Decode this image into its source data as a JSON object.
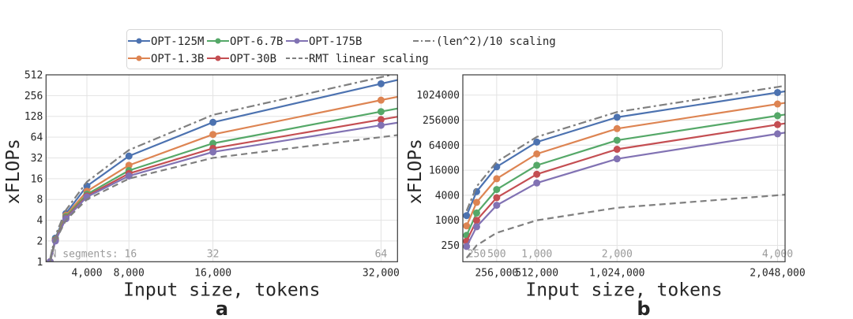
{
  "legend": {
    "placement": "top-center",
    "entries": [
      {
        "label": "OPT-125M",
        "color": "#4c72b0",
        "style": "solid-marker"
      },
      {
        "label": "OPT-1.3B",
        "color": "#dd8452",
        "style": "solid-marker"
      },
      {
        "label": "OPT-6.7B",
        "color": "#55a868",
        "style": "solid-marker"
      },
      {
        "label": "OPT-30B",
        "color": "#c44e52",
        "style": "solid-marker"
      },
      {
        "label": "OPT-175B",
        "color": "#8172b3",
        "style": "solid-marker"
      },
      {
        "label": "RMT linear scaling",
        "color": "#7f7f7f",
        "style": "dashed"
      },
      {
        "label": "(len^2)/10 scaling",
        "color": "#7f7f7f",
        "style": "dashdot"
      }
    ]
  },
  "chart_data": [
    {
      "type": "line",
      "panel_label": "a",
      "xlabel": "Input size, tokens",
      "ylabel": "xFLOPs",
      "x_scale": "linear",
      "y_scale": "log2",
      "xlim": [
        110,
        33570
      ],
      "ylim": [
        1,
        512
      ],
      "grid": true,
      "x_ticks": [
        {
          "value": 4000,
          "label": "4,000"
        },
        {
          "value": 8000,
          "label": "8,000"
        },
        {
          "value": 16000,
          "label": "16,000"
        },
        {
          "value": 32000,
          "label": "32,000"
        }
      ],
      "y_ticks": [
        {
          "value": 1,
          "label": "1"
        },
        {
          "value": 2,
          "label": "2"
        },
        {
          "value": 4,
          "label": "4"
        },
        {
          "value": 8,
          "label": "8"
        },
        {
          "value": 16,
          "label": "16"
        },
        {
          "value": 32,
          "label": "32"
        },
        {
          "value": 64,
          "label": "64"
        },
        {
          "value": 128,
          "label": "128"
        },
        {
          "value": 256,
          "label": "256"
        },
        {
          "value": 512,
          "label": "512"
        }
      ],
      "secondary_ticks": [
        {
          "value": 8000,
          "label": "N segments: 16"
        },
        {
          "value": 16000,
          "label": "32"
        },
        {
          "value": 32000,
          "label": "64"
        }
      ],
      "x": [
        500,
        1000,
        2000,
        4000,
        8000,
        16000,
        32000
      ],
      "series": [
        {
          "name": "OPT-125M",
          "values": [
            1,
            2.2,
            5,
            12.5,
            34,
            105,
            380
          ]
        },
        {
          "name": "OPT-1.3B",
          "values": [
            1,
            2.1,
            4.7,
            10.5,
            25,
            70,
            220
          ]
        },
        {
          "name": "OPT-6.7B",
          "values": [
            1,
            2.1,
            4.5,
            9.5,
            21,
            52,
            150
          ]
        },
        {
          "name": "OPT-30B",
          "values": [
            1,
            2.05,
            4.3,
            9,
            19,
            44,
            115
          ]
        },
        {
          "name": "OPT-175B",
          "values": [
            1,
            2,
            4.2,
            8.7,
            17.5,
            39,
            95
          ]
        },
        {
          "name": "RMT linear scaling",
          "values": [
            1,
            2,
            4,
            8,
            16,
            32,
            64
          ]
        },
        {
          "name": "(len^2)/10 scaling",
          "values": [
            1.1,
            2.4,
            5.6,
            14.4,
            41.6,
            134.4,
            473.6
          ]
        }
      ]
    },
    {
      "type": "line",
      "panel_label": "b",
      "xlabel": "Input size, tokens",
      "ylabel": "xFLOPs",
      "x_scale": "linear",
      "y_scale": "log2",
      "xlim": [
        40000,
        2096000
      ],
      "ylim": [
        101,
        3140000
      ],
      "grid": true,
      "x_ticks": [
        {
          "value": 256000,
          "label": "256,000"
        },
        {
          "value": 512000,
          "label": "512,000"
        },
        {
          "value": 1024000,
          "label": "1,024,000"
        },
        {
          "value": 2048000,
          "label": "2,048,000"
        }
      ],
      "y_ticks": [
        {
          "value": 250,
          "label": "250"
        },
        {
          "value": 1000,
          "label": "1000"
        },
        {
          "value": 4000,
          "label": "4000"
        },
        {
          "value": 16000,
          "label": "16000"
        },
        {
          "value": 64000,
          "label": "64000"
        },
        {
          "value": 256000,
          "label": "256000"
        },
        {
          "value": 1024000,
          "label": "1024000"
        }
      ],
      "secondary_ticks": [
        {
          "value": 128000,
          "label": "250"
        },
        {
          "value": 256000,
          "label": "500"
        },
        {
          "value": 512000,
          "label": "1,000"
        },
        {
          "value": 1024000,
          "label": "2,000"
        },
        {
          "value": 2048000,
          "label": "4,000"
        }
      ],
      "x": [
        64000,
        128000,
        256000,
        512000,
        1024000,
        2048000
      ],
      "series": [
        {
          "name": "OPT-125M",
          "values": [
            1300,
            4900,
            19300,
            76000,
            300000,
            1180000
          ]
        },
        {
          "name": "OPT-1.3B",
          "values": [
            735,
            2700,
            10000,
            39500,
            160000,
            625000
          ]
        },
        {
          "name": "OPT-6.7B",
          "values": [
            435,
            1500,
            5500,
            21000,
            84000,
            327000
          ]
        },
        {
          "name": "OPT-30B",
          "values": [
            315,
            1000,
            3500,
            12800,
            51000,
            200000
          ]
        },
        {
          "name": "OPT-175B",
          "values": [
            235,
            700,
            2300,
            7900,
            30000,
            120000
          ]
        },
        {
          "name": "RMT linear scaling",
          "values": [
            125,
            250,
            500,
            1000,
            2000,
            4000
          ]
        },
        {
          "name": "(len^2)/10 scaling",
          "values": [
            1687,
            6500,
            25500,
            101000,
            401400,
            1604000
          ]
        }
      ]
    }
  ]
}
